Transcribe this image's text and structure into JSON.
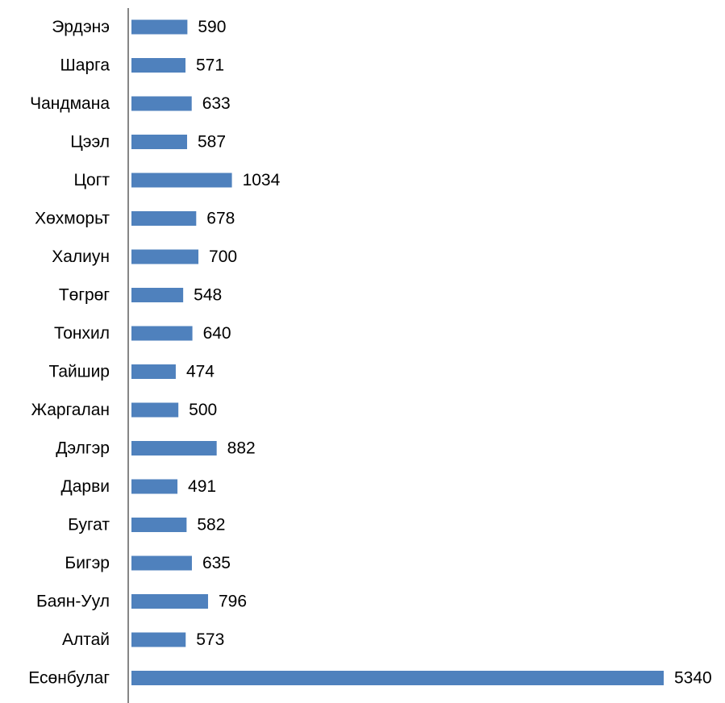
{
  "chart_data": {
    "type": "bar",
    "orientation": "horizontal",
    "title": "",
    "xlabel": "",
    "ylabel": "",
    "categories": [
      "Эрдэнэ",
      "Шарга",
      "Чандмана",
      "Цээл",
      "Цогт",
      "Хөхморьт",
      "Халиун",
      "Төгрөг",
      "Тонхил",
      "Тайшир",
      "Жаргалан",
      "Дэлгэр",
      "Дарви",
      "Бугат",
      "Бигэр",
      "Баян-Уул",
      "Алтай",
      "Есөнбулаг"
    ],
    "values": [
      590,
      571,
      633,
      587,
      1034,
      678,
      700,
      548,
      640,
      474,
      500,
      882,
      491,
      582,
      635,
      796,
      573,
      5340
    ],
    "data_labels": [
      "590",
      "571",
      "633",
      "587",
      "1034",
      "678",
      "700",
      "548",
      "640",
      "474",
      "500",
      "882",
      "491",
      "582",
      "635",
      "796",
      "573",
      "5340"
    ],
    "xlim": [
      0,
      5340
    ],
    "grid": false,
    "legend": "none",
    "bar_color": "#4f81bd",
    "axis_color": "#868686"
  }
}
